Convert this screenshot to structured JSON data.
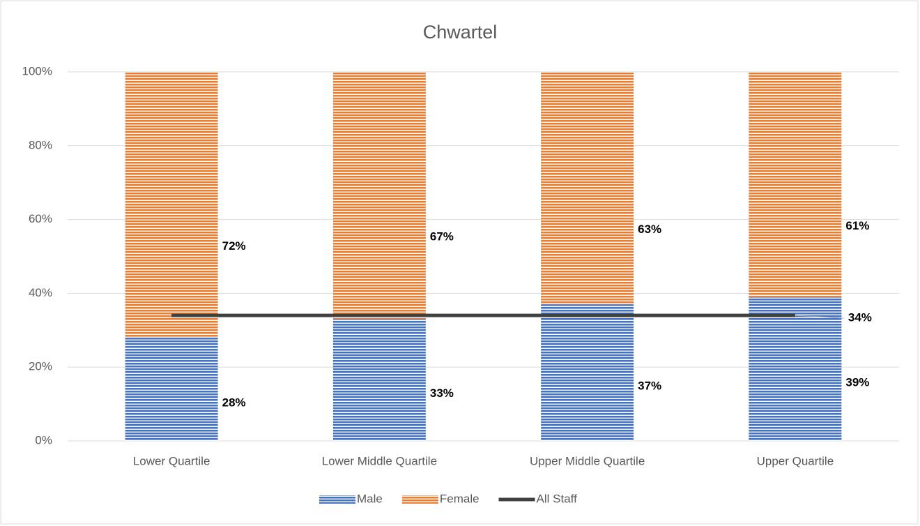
{
  "chart_data": {
    "type": "stacked_bar_line",
    "title": "Chwartel",
    "categories": [
      "Lower Quartile",
      "Lower Middle Quartile",
      "Upper Middle Quartile",
      "Upper Quartile"
    ],
    "series": [
      {
        "name": "Male",
        "color": "#4472c4",
        "kind": "bar",
        "values": [
          28,
          33,
          37,
          39
        ],
        "value_labels": [
          "28%",
          "33%",
          "37%",
          "39%"
        ]
      },
      {
        "name": "Female",
        "color": "#ed7d31",
        "kind": "bar",
        "values": [
          72,
          67,
          63,
          61
        ],
        "value_labels": [
          "72%",
          "67%",
          "63%",
          "61%"
        ]
      },
      {
        "name": "All Staff",
        "color": "#404040",
        "kind": "line",
        "values": [
          34,
          34,
          34,
          34
        ],
        "value_labels": [
          null,
          null,
          null,
          "34%"
        ]
      }
    ],
    "ylim": [
      0,
      100
    ],
    "yticks": [
      {
        "value": 0,
        "label": "0%"
      },
      {
        "value": 20,
        "label": "20%"
      },
      {
        "value": 40,
        "label": "40%"
      },
      {
        "value": 60,
        "label": "60%"
      },
      {
        "value": 80,
        "label": "80%"
      },
      {
        "value": 100,
        "label": "100%"
      }
    ],
    "grid": true,
    "legend": "bottom"
  }
}
